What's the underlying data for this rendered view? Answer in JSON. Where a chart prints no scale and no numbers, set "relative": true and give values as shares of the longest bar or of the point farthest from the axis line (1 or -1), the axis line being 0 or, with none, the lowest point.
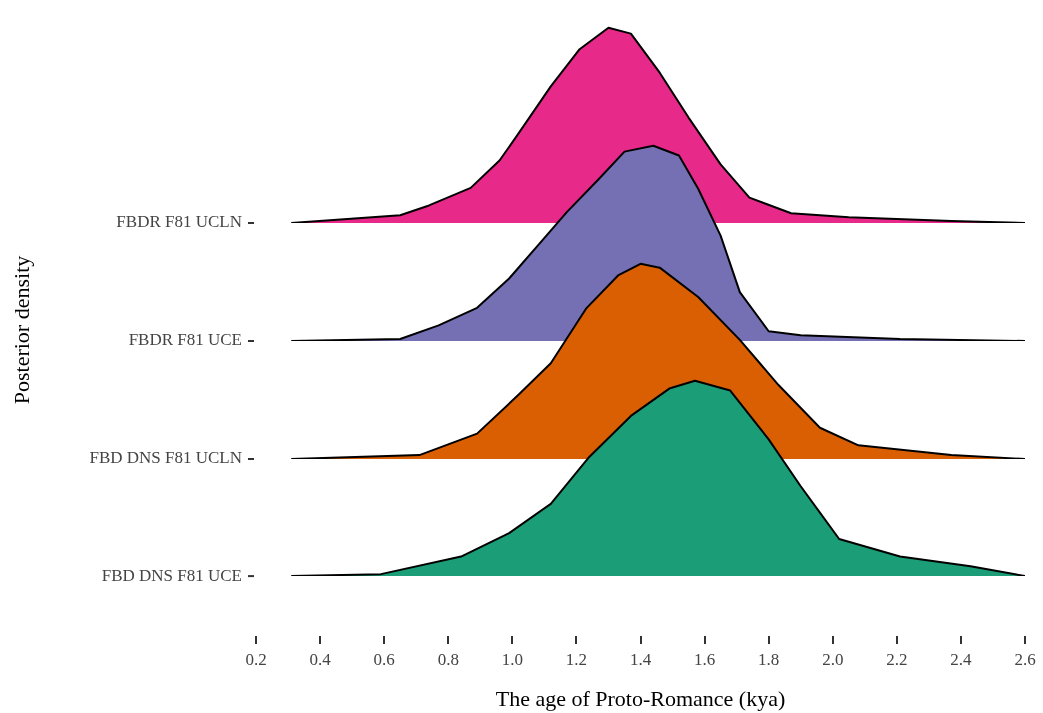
{
  "chart_data": [
    {
      "type": "area",
      "relative": true,
      "tick_labels": false,
      "xlim": [
        0.2,
        2.6
      ],
      "series": [
        {
          "name": "FBDR F81 UCLN",
          "color": "#e7298a",
          "x": [
            0.31,
            0.65,
            0.74,
            0.87,
            0.96,
            1.02,
            1.12,
            1.21,
            1.3,
            1.37,
            1.46,
            1.55,
            1.65,
            1.74,
            1.87,
            2.05,
            2.37,
            2.6
          ],
          "values": [
            0,
            0.04,
            0.09,
            0.18,
            0.32,
            0.46,
            0.7,
            0.89,
            1,
            0.97,
            0.77,
            0.54,
            0.3,
            0.13,
            0.05,
            0.03,
            0.01,
            0
          ]
        }
      ]
    },
    {
      "type": "area",
      "relative": true,
      "tick_labels": false,
      "xlim": [
        0.2,
        2.6
      ],
      "series": [
        {
          "name": "FBDR F81 UCE",
          "color": "#7570b3",
          "x": [
            0.31,
            0.65,
            0.77,
            0.89,
            0.99,
            1.08,
            1.17,
            1.27,
            1.35,
            1.44,
            1.52,
            1.58,
            1.65,
            1.71,
            1.8,
            1.9,
            2.21,
            2.6
          ],
          "values": [
            0,
            0.01,
            0.08,
            0.17,
            0.32,
            0.49,
            0.66,
            0.83,
            0.97,
            1,
            0.95,
            0.78,
            0.54,
            0.25,
            0.05,
            0.03,
            0.01,
            0
          ]
        }
      ]
    },
    {
      "type": "area",
      "relative": true,
      "tick_labels": false,
      "xlim": [
        0.2,
        2.6
      ],
      "series": [
        {
          "name": "FBD DNS F81 UCLN",
          "color": "#d95f02",
          "x": [
            0.31,
            0.71,
            0.89,
            1.02,
            1.12,
            1.23,
            1.33,
            1.4,
            1.46,
            1.58,
            1.71,
            1.83,
            1.96,
            2.08,
            2.37,
            2.6
          ],
          "values": [
            0,
            0.02,
            0.13,
            0.33,
            0.49,
            0.77,
            0.94,
            1,
            0.98,
            0.83,
            0.61,
            0.38,
            0.16,
            0.07,
            0.02,
            0
          ]
        }
      ]
    },
    {
      "type": "area",
      "relative": true,
      "xlabel": "The age of Proto-Romance (kya)",
      "annotations": [
        "Posterior density"
      ],
      "xlim": [
        0.2,
        2.6
      ],
      "xticks": [
        {
          "value": 0.2,
          "label": "0.2"
        },
        {
          "value": 0.4,
          "label": "0.4"
        },
        {
          "value": 0.6,
          "label": "0.6"
        },
        {
          "value": 0.8,
          "label": "0.8"
        },
        {
          "value": 1.0,
          "label": "1.0"
        },
        {
          "value": 1.2,
          "label": "1.2"
        },
        {
          "value": 1.4,
          "label": "1.4"
        },
        {
          "value": 1.6,
          "label": "1.6"
        },
        {
          "value": 1.8,
          "label": "1.8"
        },
        {
          "value": 2.0,
          "label": "2.0"
        },
        {
          "value": 2.2,
          "label": "2.2"
        },
        {
          "value": 2.4,
          "label": "2.4"
        },
        {
          "value": 2.6,
          "label": "2.6"
        }
      ],
      "series": [
        {
          "name": "FBD DNS F81 UCE",
          "color": "#1b9e77",
          "x": [
            0.31,
            0.59,
            0.84,
            0.99,
            1.12,
            1.24,
            1.37,
            1.49,
            1.57,
            1.68,
            1.8,
            1.9,
            2.02,
            2.21,
            2.43,
            2.6
          ],
          "values": [
            0,
            0.01,
            0.1,
            0.22,
            0.37,
            0.61,
            0.82,
            0.96,
            1,
            0.95,
            0.7,
            0.46,
            0.19,
            0.1,
            0.05,
            0
          ]
        }
      ]
    }
  ]
}
